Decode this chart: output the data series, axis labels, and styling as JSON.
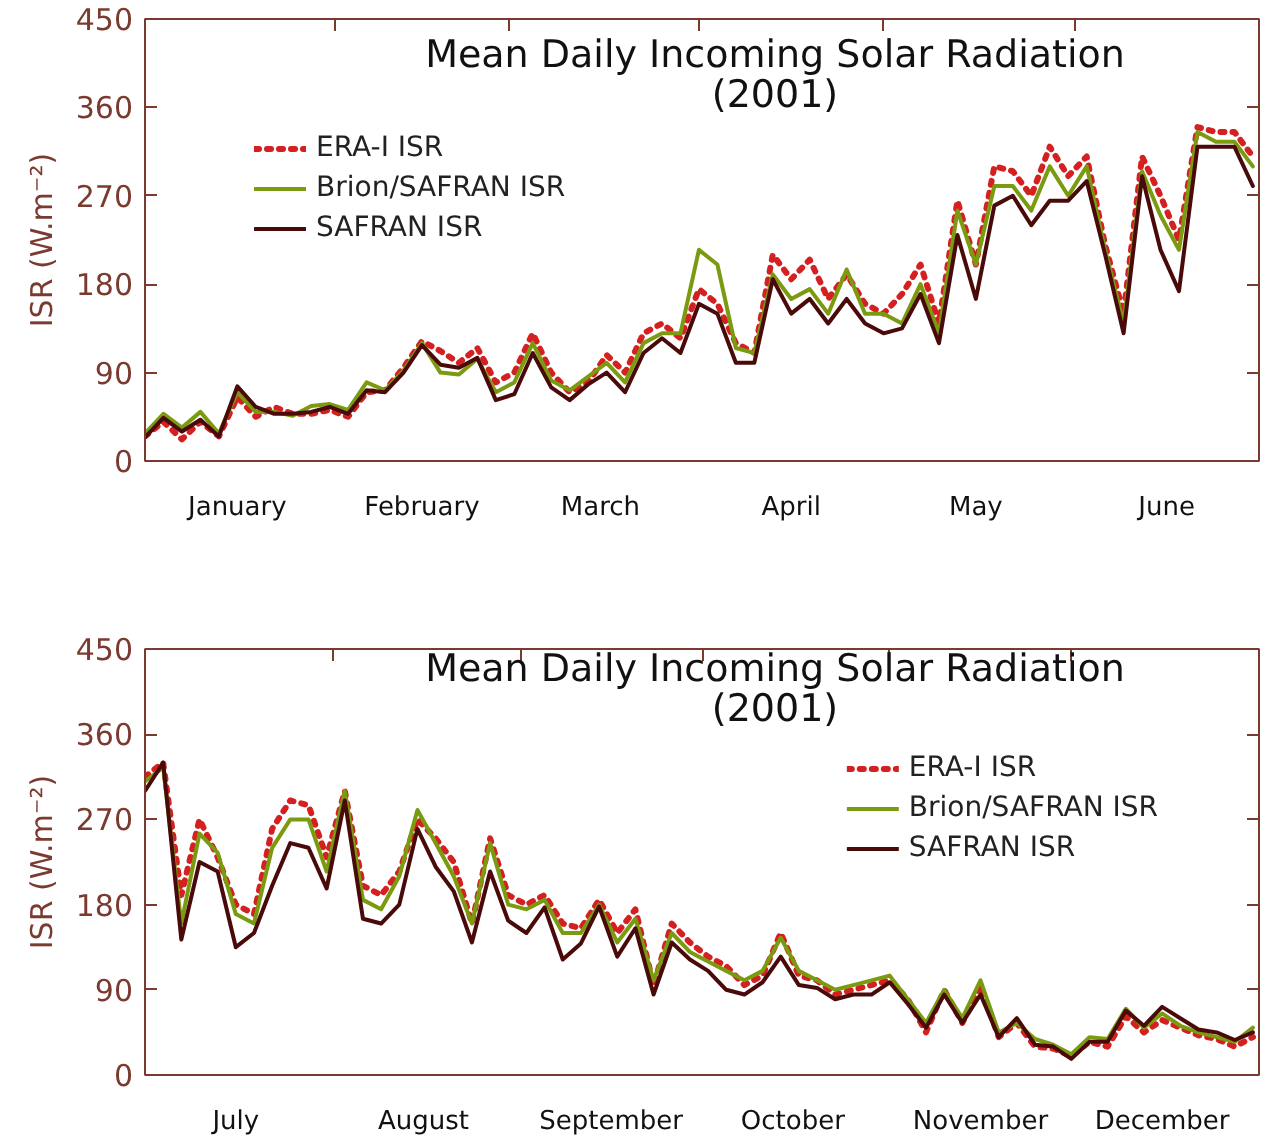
{
  "chart_data": [
    {
      "type": "line",
      "title": "Mean Daily Incoming Solar Radiation",
      "subtitle": "(2001)",
      "ylabel": "ISR (W.m⁻²)",
      "legend": "top left",
      "xlim": [
        "2001-01-01",
        "2001-07-01"
      ],
      "ylim": [
        0,
        450
      ],
      "yticks": [
        0,
        90,
        180,
        270,
        360,
        450
      ],
      "xticks": [
        {
          "value": "2001-01-01",
          "label": null
        },
        {
          "value": "2001-01-16",
          "label": "January"
        },
        {
          "value": "2001-02-01",
          "label": null
        },
        {
          "value": "2001-02-15",
          "label": "February"
        },
        {
          "value": "2001-03-01",
          "label": null
        },
        {
          "value": "2001-03-16",
          "label": "March"
        },
        {
          "value": "2001-04-01",
          "label": null
        },
        {
          "value": "2001-04-16",
          "label": "April"
        },
        {
          "value": "2001-05-01",
          "label": null
        },
        {
          "value": "2001-05-16",
          "label": "May"
        },
        {
          "value": "2001-06-01",
          "label": null
        },
        {
          "value": "2001-06-16",
          "label": "June"
        },
        {
          "value": "2001-07-01",
          "label": null
        }
      ],
      "x": [
        "2001-01-01",
        "2001-01-04",
        "2001-01-07",
        "2001-01-10",
        "2001-01-13",
        "2001-01-16",
        "2001-01-19",
        "2001-01-22",
        "2001-01-25",
        "2001-01-28",
        "2001-01-31",
        "2001-02-03",
        "2001-02-06",
        "2001-02-09",
        "2001-02-12",
        "2001-02-15",
        "2001-02-18",
        "2001-02-21",
        "2001-02-24",
        "2001-02-27",
        "2001-03-02",
        "2001-03-05",
        "2001-03-08",
        "2001-03-11",
        "2001-03-14",
        "2001-03-17",
        "2001-03-20",
        "2001-03-23",
        "2001-03-26",
        "2001-03-29",
        "2001-04-01",
        "2001-04-04",
        "2001-04-07",
        "2001-04-10",
        "2001-04-13",
        "2001-04-16",
        "2001-04-19",
        "2001-04-22",
        "2001-04-25",
        "2001-04-28",
        "2001-05-01",
        "2001-05-04",
        "2001-05-07",
        "2001-05-10",
        "2001-05-13",
        "2001-05-16",
        "2001-05-19",
        "2001-05-22",
        "2001-05-25",
        "2001-05-28",
        "2001-05-31",
        "2001-06-03",
        "2001-06-06",
        "2001-06-09",
        "2001-06-12",
        "2001-06-15",
        "2001-06-18",
        "2001-06-21",
        "2001-06-24",
        "2001-06-27",
        "2001-06-30"
      ],
      "series": [
        {
          "name": "ERA-I ISR",
          "color": "#d42020",
          "line_style": "dotted",
          "values": [
            25,
            40,
            22,
            40,
            25,
            65,
            45,
            55,
            48,
            48,
            52,
            45,
            70,
            72,
            95,
            122,
            112,
            100,
            115,
            80,
            90,
            130,
            90,
            70,
            80,
            108,
            90,
            130,
            140,
            125,
            175,
            160,
            120,
            110,
            210,
            185,
            205,
            165,
            190,
            160,
            150,
            170,
            200,
            140,
            265,
            200,
            300,
            295,
            270,
            320,
            290,
            310,
            220,
            150,
            310,
            270,
            225,
            340,
            335,
            335,
            310
          ]
        },
        {
          "name": "Brion/SAFRAN ISR",
          "color": "#7a9a10",
          "line_style": "solid",
          "values": [
            28,
            48,
            34,
            50,
            28,
            70,
            50,
            50,
            46,
            56,
            58,
            52,
            80,
            72,
            92,
            120,
            90,
            88,
            104,
            70,
            80,
            120,
            82,
            72,
            86,
            100,
            80,
            120,
            130,
            130,
            215,
            200,
            115,
            110,
            190,
            165,
            175,
            150,
            195,
            150,
            150,
            140,
            180,
            130,
            255,
            200,
            280,
            280,
            255,
            300,
            270,
            300,
            215,
            140,
            295,
            250,
            215,
            335,
            325,
            325,
            300
          ]
        },
        {
          "name": "SAFRAN ISR",
          "color": "#4a0a0a",
          "line_style": "solid",
          "values": [
            24,
            44,
            30,
            42,
            25,
            76,
            55,
            48,
            48,
            50,
            55,
            48,
            72,
            70,
            90,
            118,
            98,
            95,
            105,
            62,
            68,
            110,
            75,
            62,
            78,
            90,
            70,
            110,
            125,
            110,
            160,
            150,
            100,
            100,
            185,
            150,
            165,
            140,
            165,
            140,
            130,
            135,
            170,
            120,
            230,
            165,
            260,
            270,
            240,
            265,
            265,
            285,
            210,
            130,
            290,
            215,
            173,
            320,
            320,
            320,
            280
          ]
        }
      ]
    },
    {
      "type": "line",
      "title": "Mean Daily Incoming Solar Radiation",
      "subtitle": "(2001)",
      "ylabel": "ISR (W.m⁻²)",
      "legend": "top right",
      "xlim": [
        "2001-07-01",
        "2002-01-01"
      ],
      "ylim": [
        0,
        450
      ],
      "yticks": [
        0,
        90,
        180,
        270,
        360,
        450
      ],
      "xticks": [
        {
          "value": "2001-07-01",
          "label": null
        },
        {
          "value": "2001-07-16",
          "label": "July"
        },
        {
          "value": "2001-08-01",
          "label": null
        },
        {
          "value": "2001-08-16",
          "label": "August"
        },
        {
          "value": "2001-09-01",
          "label": null
        },
        {
          "value": "2001-09-16",
          "label": "September"
        },
        {
          "value": "2001-10-01",
          "label": null
        },
        {
          "value": "2001-10-16",
          "label": "October"
        },
        {
          "value": "2001-11-01",
          "label": null
        },
        {
          "value": "2001-11-16",
          "label": "November"
        },
        {
          "value": "2001-12-01",
          "label": null
        },
        {
          "value": "2001-12-16",
          "label": "December"
        },
        {
          "value": "2002-01-01",
          "label": null
        }
      ],
      "x": [
        "2001-07-01",
        "2001-07-04",
        "2001-07-07",
        "2001-07-10",
        "2001-07-13",
        "2001-07-16",
        "2001-07-19",
        "2001-07-22",
        "2001-07-25",
        "2001-07-28",
        "2001-07-31",
        "2001-08-03",
        "2001-08-06",
        "2001-08-09",
        "2001-08-12",
        "2001-08-15",
        "2001-08-18",
        "2001-08-21",
        "2001-08-24",
        "2001-08-27",
        "2001-08-30",
        "2001-09-02",
        "2001-09-05",
        "2001-09-08",
        "2001-09-11",
        "2001-09-14",
        "2001-09-17",
        "2001-09-20",
        "2001-09-23",
        "2001-09-26",
        "2001-09-29",
        "2001-10-02",
        "2001-10-05",
        "2001-10-08",
        "2001-10-11",
        "2001-10-14",
        "2001-10-17",
        "2001-10-20",
        "2001-10-23",
        "2001-10-26",
        "2001-10-29",
        "2001-11-01",
        "2001-11-04",
        "2001-11-07",
        "2001-11-10",
        "2001-11-13",
        "2001-11-16",
        "2001-11-19",
        "2001-11-22",
        "2001-11-25",
        "2001-11-28",
        "2001-12-01",
        "2001-12-04",
        "2001-12-07",
        "2001-12-10",
        "2001-12-13",
        "2001-12-16",
        "2001-12-19",
        "2001-12-22",
        "2001-12-25",
        "2001-12-28",
        "2001-12-31"
      ],
      "series": [
        {
          "name": "ERA-I ISR",
          "color": "#d42020",
          "line_style": "dotted",
          "values": [
            315,
            330,
            190,
            270,
            230,
            180,
            170,
            260,
            290,
            285,
            230,
            300,
            200,
            190,
            215,
            270,
            250,
            225,
            160,
            250,
            190,
            180,
            190,
            160,
            155,
            185,
            150,
            175,
            95,
            160,
            140,
            125,
            115,
            95,
            105,
            150,
            105,
            100,
            85,
            90,
            95,
            100,
            80,
            45,
            90,
            55,
            95,
            40,
            55,
            30,
            28,
            20,
            35,
            30,
            62,
            45,
            58,
            50,
            42,
            38,
            30,
            40
          ]
        },
        {
          "name": "Brion/SAFRAN ISR",
          "color": "#7a9a10",
          "line_style": "solid",
          "values": [
            310,
            325,
            160,
            255,
            235,
            170,
            160,
            240,
            270,
            270,
            215,
            300,
            185,
            175,
            210,
            280,
            245,
            210,
            160,
            245,
            180,
            175,
            185,
            150,
            150,
            180,
            140,
            165,
            100,
            150,
            130,
            120,
            110,
            100,
            110,
            145,
            110,
            100,
            90,
            95,
            100,
            105,
            80,
            55,
            90,
            60,
            100,
            45,
            55,
            38,
            32,
            22,
            40,
            38,
            70,
            50,
            65,
            52,
            45,
            40,
            35,
            50
          ]
        },
        {
          "name": "SAFRAN ISR",
          "color": "#4a0a0a",
          "line_style": "solid",
          "values": [
            300,
            330,
            143,
            225,
            215,
            135,
            150,
            200,
            245,
            240,
            197,
            290,
            165,
            160,
            180,
            260,
            220,
            194,
            140,
            215,
            163,
            150,
            177,
            122,
            139,
            178,
            125,
            155,
            85,
            140,
            122,
            110,
            90,
            85,
            98,
            125,
            95,
            92,
            80,
            85,
            85,
            98,
            75,
            50,
            85,
            55,
            85,
            40,
            60,
            32,
            30,
            17,
            35,
            35,
            68,
            52,
            72,
            60,
            48,
            45,
            37,
            45
          ]
        }
      ]
    }
  ]
}
